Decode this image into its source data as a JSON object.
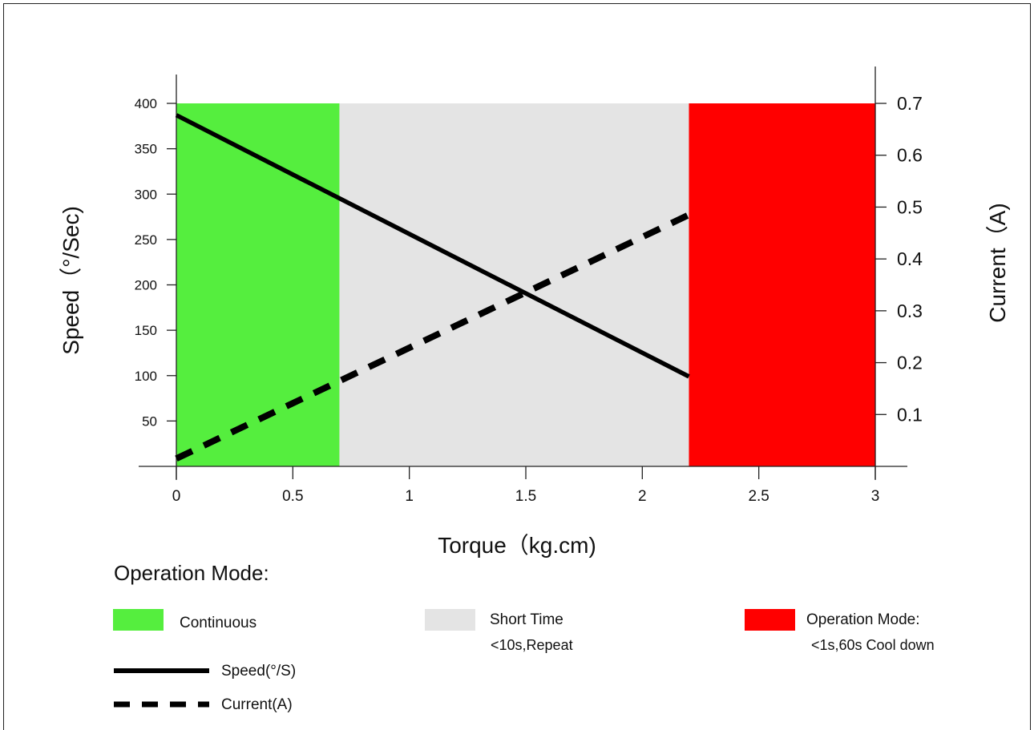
{
  "chart_data": {
    "type": "line",
    "xlabel": "Torque（kg.cm)",
    "ylabel_left": "Speed（°/Sec)",
    "ylabel_right": "Current（A)",
    "xlim": [
      0,
      3
    ],
    "ylim_left": [
      0,
      400
    ],
    "ylim_right": [
      0,
      0.7
    ],
    "x_ticks": [
      "0",
      "0.5",
      "1",
      "1.5",
      "2",
      "2.5",
      "3"
    ],
    "y_left_ticks": [
      "50",
      "100",
      "150",
      "200",
      "250",
      "300",
      "350",
      "400"
    ],
    "y_right_ticks": [
      "0.1",
      "0.2",
      "0.3",
      "0.4",
      "0.5",
      "0.6",
      "0.7"
    ],
    "regions": [
      {
        "label": "Continuous",
        "x_start": 0,
        "x_end": 0.7,
        "color": "#55ee3e"
      },
      {
        "label": "Short Time",
        "x_start": 0.7,
        "x_end": 2.2,
        "color": "#e4e4e4"
      },
      {
        "label": "Operation Mode:",
        "x_start": 2.2,
        "x_end": 3.0,
        "color": "#ff0000"
      }
    ],
    "series": [
      {
        "name": "Speed(°/S)",
        "axis": "left",
        "style": "solid",
        "x": [
          0,
          2.2
        ],
        "y": [
          387,
          99
        ]
      },
      {
        "name": "Current(A)",
        "axis": "right",
        "style": "dashed",
        "x": [
          0,
          2.2
        ],
        "y": [
          0.015,
          0.485
        ]
      }
    ],
    "grid": false
  },
  "legend": {
    "title": "Operation Mode:",
    "modes": [
      {
        "label": "Continuous",
        "sub": "",
        "color": "#55ee3e"
      },
      {
        "label": "Short Time",
        "sub": "<10s,Repeat",
        "color": "#e4e4e4"
      },
      {
        "label": "Operation Mode:",
        "sub": "<1s,60s Cool down",
        "color": "#ff0000"
      }
    ],
    "lines": [
      {
        "label": "Speed(°/S)",
        "style": "solid"
      },
      {
        "label": "Current(A)",
        "style": "dashed"
      }
    ]
  }
}
